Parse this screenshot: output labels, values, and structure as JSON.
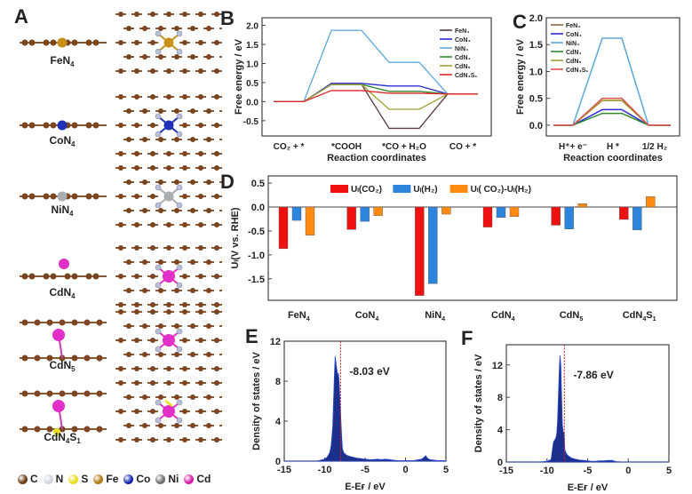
{
  "panels": {
    "A": {
      "label": "A",
      "structures": [
        {
          "name": "FeN4",
          "base": "FeN",
          "sub": "4",
          "metal_color": "#c8901a"
        },
        {
          "name": "CoN4",
          "base": "CoN",
          "sub": "4",
          "metal_color": "#1f2fb8"
        },
        {
          "name": "NiN4",
          "base": "NiN",
          "sub": "4",
          "metal_color": "#a9aeb0"
        },
        {
          "name": "CdN4",
          "base": "CdN",
          "sub": "4",
          "metal_color": "#e030c8"
        },
        {
          "name": "CdN5",
          "base": "CdN",
          "sub": "5",
          "metal_color": "#e030c8"
        },
        {
          "name": "CdN4S1",
          "base": "CdN",
          "sub": "4",
          "base2": "S",
          "sub2": "1",
          "metal_color": "#e030c8"
        }
      ],
      "legend": [
        {
          "symbol": "C",
          "color": "#6b3a17"
        },
        {
          "symbol": "N",
          "color": "#d0d4de"
        },
        {
          "symbol": "S",
          "color": "#e8e020"
        },
        {
          "symbol": "Fe",
          "color": "#b07a10"
        },
        {
          "symbol": "Co",
          "color": "#1426b0"
        },
        {
          "symbol": "Ni",
          "color": "#707070"
        },
        {
          "symbol": "Cd",
          "color": "#d81aa8"
        }
      ]
    },
    "B": {
      "label": "B"
    },
    "C": {
      "label": "C"
    },
    "D": {
      "label": "D"
    },
    "E": {
      "label": "E"
    },
    "F": {
      "label": "F"
    }
  },
  "chart_data": [
    {
      "id": "B",
      "type": "line",
      "title": "",
      "xlabel": "Reaction coordinates",
      "ylabel": "Free energy / eV",
      "categories": [
        "CO₂ + *",
        "*COOH",
        "*CO + H₂O",
        "CO + *"
      ],
      "ylim": [
        -0.9,
        2.2
      ],
      "yticks": [
        "2.0",
        "1.5",
        "1.0",
        "0.5",
        "0.0",
        "-0.5"
      ],
      "ytick_values": [
        2.0,
        1.5,
        1.0,
        0.5,
        0.0,
        -0.5
      ],
      "legend_position": "top-right",
      "series": [
        {
          "name": "FeN₄",
          "color": "#5a3a3a",
          "values": [
            0,
            0.45,
            -0.7,
            0.2
          ]
        },
        {
          "name": "CoN₄",
          "color": "#2a2ad8",
          "values": [
            0,
            0.48,
            0.41,
            0.2
          ]
        },
        {
          "name": "NiN₄",
          "color": "#5aa8e0",
          "values": [
            0,
            1.87,
            1.03,
            0.2
          ]
        },
        {
          "name": "CdN₄",
          "color": "#2e8b2e",
          "values": [
            0,
            0.45,
            0.27,
            0.2
          ]
        },
        {
          "name": "CdN₅",
          "color": "#a0a030",
          "values": [
            0,
            0.45,
            -0.2,
            0.2
          ]
        },
        {
          "name": "CdN₄S₁",
          "color": "#e02828",
          "values": [
            0,
            0.29,
            0.22,
            0.2
          ]
        }
      ]
    },
    {
      "id": "C",
      "type": "line",
      "title": "",
      "xlabel": "Reaction coordinates",
      "ylabel": "Free energy / eV",
      "categories": [
        "H⁺+ e⁻",
        "H *",
        "1/2 H₂"
      ],
      "ylim": [
        -0.2,
        2.0
      ],
      "yticks": [
        "2.0",
        "1.5",
        "1.0",
        "0.5",
        "0.0"
      ],
      "ytick_values": [
        2.0,
        1.5,
        1.0,
        0.5,
        0.0
      ],
      "legend_position": "top-left",
      "series": [
        {
          "name": "FeN₄",
          "color": "#8a6a3a",
          "values": [
            0,
            0.46,
            0
          ]
        },
        {
          "name": "CoN₄",
          "color": "#2a2ad8",
          "values": [
            0,
            0.29,
            0
          ]
        },
        {
          "name": "NiN₄",
          "color": "#5aa8e0",
          "values": [
            0,
            1.62,
            0
          ]
        },
        {
          "name": "CdN₄",
          "color": "#2e8b2e",
          "values": [
            0,
            0.22,
            0
          ]
        },
        {
          "name": "CdN₅",
          "color": "#a0a030",
          "values": [
            0,
            0.46,
            0
          ]
        },
        {
          "name": "CdN₄S₁",
          "color": "#e05050",
          "values": [
            0,
            0.5,
            0
          ]
        }
      ]
    },
    {
      "id": "D",
      "type": "bar",
      "title": "",
      "xlabel": "",
      "ylabel": "Uₗ(V vs. RHE)",
      "categories": [
        "FeN4",
        "CoN4",
        "NiN4",
        "CdN4",
        "CdN5",
        "CdN4S1"
      ],
      "category_labels": [
        {
          "base": "FeN",
          "sub": "4"
        },
        {
          "base": "CoN",
          "sub": "4"
        },
        {
          "base": "NiN",
          "sub": "4"
        },
        {
          "base": "CdN",
          "sub": "4"
        },
        {
          "base": "CdN",
          "sub": "5"
        },
        {
          "base": "CdN",
          "sub": "4",
          "base2": "S",
          "sub2": "1"
        }
      ],
      "ylim": [
        -1.95,
        0.65
      ],
      "yticks": [
        "0.5",
        "0.0",
        "-0.5",
        "-1.0",
        "-1.5"
      ],
      "ytick_values": [
        0.5,
        0.0,
        -0.5,
        -1.0,
        -1.5
      ],
      "legend_position": "top",
      "series": [
        {
          "name": "Uₗ(CO₂)",
          "color": "#f01010",
          "values": [
            -0.87,
            -0.47,
            -1.85,
            -0.42,
            -0.38,
            -0.26
          ]
        },
        {
          "name": "Uₗ(H₂)",
          "color": "#2c84dc",
          "values": [
            -0.28,
            -0.3,
            -1.6,
            -0.22,
            -0.46,
            -0.48
          ]
        },
        {
          "name": "Uₗ( CO₂)-Uₗ(H₂)",
          "color": "#ff8a10",
          "values": [
            -0.59,
            -0.18,
            -0.15,
            -0.2,
            0.07,
            0.22
          ]
        }
      ]
    },
    {
      "id": "E",
      "type": "area",
      "title": "",
      "xlabel": "E-Eғ / eV",
      "ylabel": "Density of states / eV",
      "xlim": [
        -15,
        5
      ],
      "ylim": [
        0,
        12
      ],
      "xticks": [
        "-15",
        "-10",
        "-5",
        "0",
        "5"
      ],
      "xtick_values": [
        -15,
        -10,
        -5,
        0,
        5
      ],
      "yticks": [
        "0",
        "4",
        "8",
        "12"
      ],
      "ytick_values": [
        0,
        4,
        8,
        12
      ],
      "annotation": "-8.03 eV",
      "dband_center": -8.03,
      "fill_color": "#1c2f8a",
      "x": [
        -15,
        -11,
        -10.5,
        -10,
        -9.7,
        -9.4,
        -9.2,
        -9.0,
        -8.9,
        -8.8,
        -8.7,
        -8.6,
        -8.5,
        -8.4,
        -8.3,
        -8.2,
        -8.1,
        -8.0,
        -7.9,
        -7.8,
        -7.6,
        -7.3,
        -7.0,
        -6.5,
        -6.0,
        -5.5,
        -5.0,
        -4.5,
        -4.0,
        -3.5,
        -3.0,
        -2.5,
        -2.0,
        -1.5,
        -1.0,
        0,
        1.0,
        2.0,
        2.3,
        2.5,
        2.7,
        3.0,
        4.0,
        5.0
      ],
      "y": [
        0,
        0,
        0.1,
        0.2,
        0.4,
        0.8,
        1.5,
        3.5,
        6.0,
        8.5,
        10.5,
        9.8,
        9.2,
        8.6,
        8.8,
        7.8,
        6.0,
        4.2,
        2.5,
        1.2,
        0.8,
        0.6,
        0.5,
        0.4,
        0.3,
        0.25,
        0.2,
        0.15,
        0.15,
        0.2,
        0.15,
        0.2,
        0.15,
        0.1,
        0.05,
        0.05,
        0.05,
        0.2,
        0.4,
        0.55,
        0.3,
        0.15,
        0.05,
        0.05
      ]
    },
    {
      "id": "F",
      "type": "area",
      "title": "",
      "xlabel": "E-Eғ / eV",
      "ylabel": "Density of states / eV",
      "xlim": [
        -15,
        5
      ],
      "ylim": [
        0,
        14.5
      ],
      "xticks": [
        "-15",
        "-10",
        "-5",
        "0",
        "5"
      ],
      "xtick_values": [
        -15,
        -10,
        -5,
        0,
        5
      ],
      "yticks": [
        "0",
        "4",
        "8",
        "12"
      ],
      "ytick_values": [
        0,
        4,
        8,
        12
      ],
      "annotation": "-7.86 eV",
      "dband_center": -7.86,
      "fill_color": "#1c2f8a",
      "x": [
        -15,
        -11,
        -10,
        -9.5,
        -9.2,
        -9.0,
        -8.9,
        -8.8,
        -8.7,
        -8.6,
        -8.5,
        -8.4,
        -8.3,
        -8.2,
        -8.1,
        -8.0,
        -7.9,
        -7.8,
        -7.6,
        -7.3,
        -7.0,
        -6.5,
        -6.0,
        -5.5,
        -5.0,
        -4.5,
        -4.0,
        -3.5,
        -3.0,
        -2.5,
        -2.0,
        -1.5,
        -1.0,
        0,
        5.0
      ],
      "y": [
        0,
        0,
        0.1,
        0.3,
        2.5,
        2.8,
        3.0,
        3.5,
        5.0,
        8.0,
        11.0,
        13.2,
        12.0,
        8.0,
        4.5,
        3.8,
        3.5,
        1.5,
        1.0,
        0.7,
        0.5,
        0.35,
        0.25,
        0.2,
        0.15,
        0.1,
        0.1,
        0.15,
        0.15,
        0.2,
        0.2,
        0.05,
        0.02,
        0,
        0
      ]
    }
  ]
}
